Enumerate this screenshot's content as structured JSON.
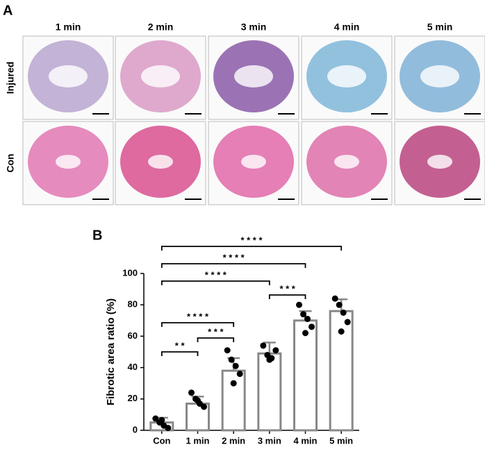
{
  "panel_a": {
    "label": "A",
    "columns": [
      "1 min",
      "2 min",
      "3 min",
      "4 min",
      "5 min"
    ],
    "rows": [
      "Injured",
      "Con"
    ]
  },
  "chart_data": {
    "type": "bar",
    "label": "B",
    "ylabel": "Fibrotic area ratio (%)",
    "categories": [
      "Con",
      "1 min",
      "2 min",
      "3 min",
      "4 min",
      "5 min"
    ],
    "values": [
      5,
      17,
      38,
      49,
      70,
      76
    ],
    "errors": [
      3,
      4.5,
      8,
      7,
      6,
      7.5
    ],
    "points": [
      [
        7.5,
        5,
        3,
        1.5,
        6.5
      ],
      [
        24,
        20,
        17,
        15,
        19
      ],
      [
        51,
        45,
        41,
        36,
        30
      ],
      [
        54,
        48,
        46,
        51,
        45
      ],
      [
        80,
        74,
        71,
        66,
        62
      ],
      [
        84,
        80,
        75,
        69,
        63
      ]
    ],
    "color": "#888888",
    "ylim": [
      0,
      100
    ],
    "yticks": [
      0,
      20,
      40,
      60,
      80,
      100
    ],
    "comparisons": [
      {
        "between": [
          "Con",
          "5 min"
        ],
        "label": "* * * *"
      },
      {
        "between": [
          "Con",
          "4 min"
        ],
        "label": "* * * *"
      },
      {
        "between": [
          "Con",
          "3 min"
        ],
        "label": "* * * *"
      },
      {
        "between": [
          "3 min",
          "4 min"
        ],
        "label": "* * *"
      },
      {
        "between": [
          "Con",
          "2 min"
        ],
        "label": "* * * *"
      },
      {
        "between": [
          "1 min",
          "2 min"
        ],
        "label": "* * *"
      },
      {
        "between": [
          "Con",
          "1 min"
        ],
        "label": "* *"
      }
    ]
  }
}
